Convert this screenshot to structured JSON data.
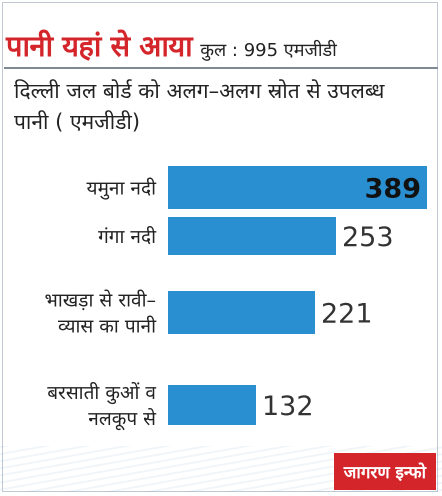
{
  "header": {
    "headline": "पानी यहां से आया",
    "total": "कुल : 995 एमजीडी"
  },
  "subtitle": "दिल्ली जल बोर्ड को अलग–अलग स्रोत से उपलब्ध पानी ( एमजीडी)",
  "brand": "जागरण इन्फो",
  "colors": {
    "bar": "#2a8fd0",
    "headline": "#d4252b"
  },
  "chart_data": {
    "type": "bar",
    "orientation": "horizontal",
    "title": "दिल्ली जल बोर्ड को अलग–अलग स्रोत से उपलब्ध पानी ( एमजीडी)",
    "categories": [
      [
        "यमुना नदी"
      ],
      [
        "गंगा नदी"
      ],
      [
        "भाखड़ा से रावी–",
        "व्यास का पानी"
      ],
      [
        "बरसाती कुओं व",
        "नलकूप से"
      ]
    ],
    "values": [
      389,
      253,
      221,
      132
    ],
    "total": 995,
    "unit": "एमजीडी"
  }
}
